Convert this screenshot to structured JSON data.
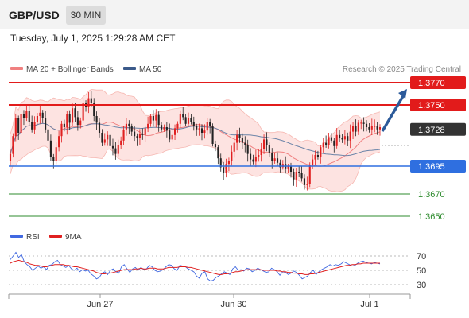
{
  "header": {
    "pair": "GBP/USD",
    "timeframe": "30 MIN"
  },
  "timestamp": "Tuesday, July 1, 2025 1:29:28 AM CET",
  "colors": {
    "bollinger": "#f08080",
    "bollinger_fill": "#fde3e1",
    "ma50": "#3b5a8a",
    "resistance": "#e21b1b",
    "support": "#2f6fe0",
    "target": "#2e8b2e",
    "bull": "#e02020",
    "bear": "#222222",
    "rsi": "#4169e1",
    "rsi_ma": "#e02020",
    "arrow": "#2b5a9a",
    "current": "#333333"
  },
  "legend": {
    "ma20_label": "MA 20 + Bollinger Bands",
    "ma50_label": "MA 50",
    "source": "Research © 2025 Trading Central",
    "rsi_label": "RSI",
    "rsi_ma_label": "9MA"
  },
  "chart_data": [
    {
      "type": "line",
      "subtype": "candlestick",
      "title": "",
      "y_range": [
        1.3635,
        1.3787
      ],
      "x_ticks": [
        "Jun 27",
        "Jun 30",
        "Jul 1"
      ],
      "candles_close": [
        1.3706,
        1.3722,
        1.3738,
        1.3725,
        1.3742,
        1.3738,
        1.3745,
        1.3735,
        1.3728,
        1.3735,
        1.374,
        1.3743,
        1.3738,
        1.3728,
        1.3718,
        1.3703,
        1.37,
        1.3712,
        1.3722,
        1.3733,
        1.373,
        1.3742,
        1.3734,
        1.3747,
        1.3739,
        1.3732,
        1.3736,
        1.3752,
        1.3748,
        1.3756,
        1.3752,
        1.374,
        1.3734,
        1.3725,
        1.3716,
        1.3719,
        1.3723,
        1.3713,
        1.3711,
        1.3706,
        1.3714,
        1.3718,
        1.3728,
        1.3733,
        1.3731,
        1.3726,
        1.3722,
        1.372,
        1.3724,
        1.3723,
        1.3729,
        1.3733,
        1.374,
        1.3736,
        1.3741,
        1.3732,
        1.3728,
        1.373,
        1.3727,
        1.3719,
        1.3723,
        1.3729,
        1.3733,
        1.3742,
        1.3739,
        1.3733,
        1.3738,
        1.3735,
        1.3731,
        1.3728,
        1.3729,
        1.3725,
        1.3727,
        1.3735,
        1.3731,
        1.3715,
        1.3712,
        1.3702,
        1.3694,
        1.3689,
        1.3697,
        1.37,
        1.3708,
        1.3716,
        1.3723,
        1.372,
        1.3716,
        1.3714,
        1.3706,
        1.3701,
        1.3699,
        1.3703,
        1.3705,
        1.371,
        1.3719,
        1.3714,
        1.3707,
        1.37,
        1.3702,
        1.3698,
        1.3694,
        1.3697,
        1.3693,
        1.3695,
        1.369,
        1.3683,
        1.369,
        1.3689,
        1.3684,
        1.3678,
        1.3679,
        1.3696,
        1.3701,
        1.3705,
        1.3703,
        1.3712,
        1.3716,
        1.3714,
        1.3721,
        1.3718,
        1.3713,
        1.3723,
        1.372,
        1.3719,
        1.3722,
        1.3718,
        1.3726,
        1.3731,
        1.3726,
        1.3734,
        1.3734,
        1.3733,
        1.373,
        1.3728,
        1.3731,
        1.3731,
        1.3728,
        1.373
      ],
      "levels": [
        {
          "label": "1.3770",
          "value": 1.377,
          "kind": "resistance"
        },
        {
          "label": "1.3750",
          "value": 1.375,
          "kind": "resistance"
        },
        {
          "label": "1.3728",
          "value": 1.3728,
          "kind": "current"
        },
        {
          "label": "1.3695",
          "value": 1.3695,
          "kind": "support"
        },
        {
          "label": "1.3670",
          "value": 1.367,
          "kind": "target"
        },
        {
          "label": "1.3650",
          "value": 1.365,
          "kind": "target"
        }
      ]
    },
    {
      "type": "line",
      "title": "",
      "y_ticks": [
        70,
        50,
        30
      ],
      "y_range": [
        20,
        80
      ],
      "series": [
        {
          "name": "RSI",
          "values": [
            65,
            70,
            75,
            68,
            72,
            62,
            58,
            55,
            50,
            53,
            56,
            53,
            55,
            51,
            57,
            58,
            62,
            64,
            58,
            56,
            54,
            57,
            52,
            50,
            53,
            48,
            51,
            49,
            50,
            45,
            42,
            38,
            40,
            46,
            48,
            44,
            50,
            52,
            48,
            46,
            55,
            58,
            52,
            47,
            52,
            54,
            50,
            54,
            51,
            52,
            57,
            55,
            50,
            48,
            49,
            51,
            55,
            58,
            57,
            52,
            50,
            57,
            56,
            55,
            52,
            50,
            48,
            42,
            39,
            46,
            48,
            38,
            35,
            36,
            40,
            42,
            45,
            48,
            46,
            44,
            52,
            55,
            50,
            51,
            49,
            53,
            52,
            48,
            50,
            53,
            51,
            49,
            47,
            48,
            53,
            51,
            48,
            43,
            48,
            47,
            44,
            46,
            49,
            47,
            43,
            38,
            40,
            42,
            47,
            50,
            44,
            48,
            51,
            53,
            55,
            58,
            56,
            58,
            57,
            59,
            62,
            60,
            58,
            56,
            57,
            60,
            62,
            63,
            61,
            60,
            59,
            61,
            60,
            59
          ]
        },
        {
          "name": "9MA",
          "values": [
            60,
            62,
            63,
            64,
            63,
            62,
            61,
            59,
            58,
            57,
            57,
            56,
            55,
            55,
            56,
            57,
            58,
            58,
            58,
            58,
            57,
            57,
            56,
            55,
            55,
            54,
            53,
            52,
            51,
            50,
            49,
            47,
            46,
            45,
            45,
            46,
            46,
            47,
            48,
            49,
            50,
            51,
            51,
            51,
            51,
            52,
            52,
            53,
            52,
            52,
            53,
            53,
            53,
            52,
            52,
            52,
            53,
            54,
            54,
            54,
            54,
            55,
            55,
            55,
            54,
            54,
            53,
            52,
            51,
            50,
            49,
            48,
            47,
            46,
            45,
            44,
            44,
            45,
            45,
            46,
            47,
            48,
            48,
            49,
            50,
            51,
            51,
            51,
            51,
            51,
            51,
            50,
            50,
            50,
            50,
            50,
            49,
            49,
            48,
            48,
            47,
            47,
            46,
            46,
            45,
            45,
            44,
            44,
            45,
            45,
            46,
            47,
            48,
            49,
            50,
            51,
            52,
            53,
            54,
            55,
            56,
            57,
            57,
            58,
            58,
            59,
            59,
            60,
            60,
            60,
            60,
            60,
            60,
            60
          ]
        }
      ]
    }
  ]
}
